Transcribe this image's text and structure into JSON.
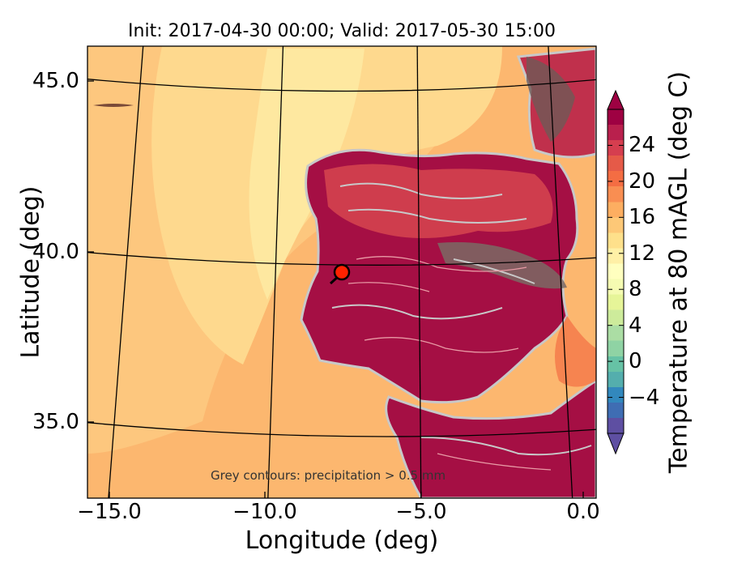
{
  "title": "Init: 2017-04-30 00:00; Valid: 2017-05-30 15:00",
  "xlabel": "Longitude (deg)",
  "ylabel": "Latitude (deg)",
  "colorbar": {
    "label": "Temperature at 80 mAGL (deg C)",
    "ticks": [
      "−4",
      "0",
      "4",
      "8",
      "12",
      "16",
      "20",
      "24"
    ],
    "range": [
      -8,
      28
    ],
    "colors": [
      "#5e4fa2",
      "#3f6db3",
      "#3288bd",
      "#54aead",
      "#66c2a5",
      "#8fd3a4",
      "#abdda4",
      "#cdeb9b",
      "#e6f598",
      "#f5fbb2",
      "#ffffbf",
      "#fff0a6",
      "#fee08b",
      "#fdc877",
      "#fdae61",
      "#f98e52",
      "#f46d43",
      "#e55a48",
      "#d53e4f",
      "#b9204d",
      "#9e0142"
    ]
  },
  "xticks": [
    "−15.0",
    "−10.0",
    "−5.0",
    "0.0"
  ],
  "yticks": [
    "45.0",
    "40.0",
    "35.0"
  ],
  "note": "Grey contours: precipitation > 0.5 mm",
  "map": {
    "region": "Iberian Peninsula",
    "lon_range": [
      -16.0,
      0.3
    ],
    "lat_range": [
      32.8,
      46.0
    ],
    "marker_color": "#ff2200",
    "sea_color": "#fdba72",
    "land_hot_color": "#a00b45"
  }
}
